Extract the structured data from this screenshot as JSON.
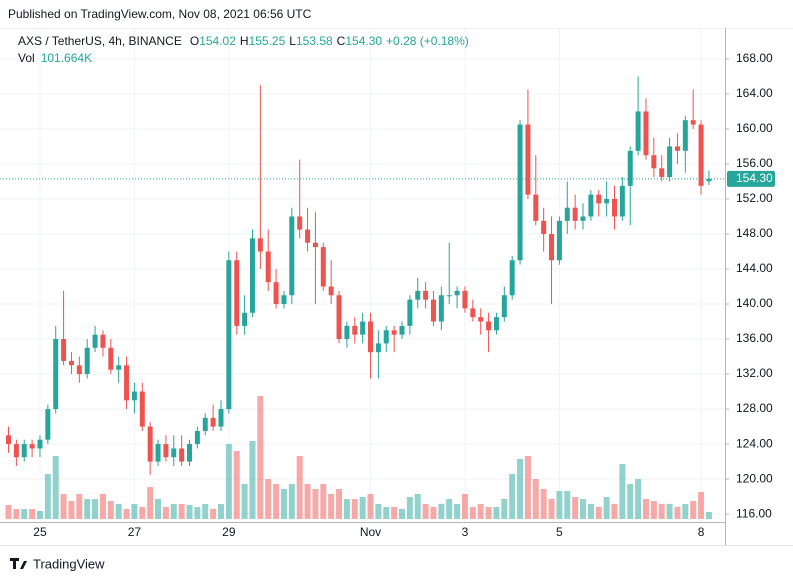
{
  "published": "Published on TradingView.com, Nov 08, 2021 06:56 UTC",
  "footer": "TradingView",
  "chart_data": {
    "type": "candlestick",
    "symbol": "AXS / TetherUS, 4h, BINANCE",
    "legend": [
      {
        "key": "O",
        "value": "154.02"
      },
      {
        "key": "H",
        "value": "155.25"
      },
      {
        "key": "L",
        "value": "153.58"
      },
      {
        "key": "C",
        "value": "154.30"
      }
    ],
    "change": "+0.28 (+0.18%)",
    "volume_key": "Vol",
    "volume_text": "101.664K",
    "up_color": "#26a69a",
    "down_color": "#ef5350",
    "grid": true,
    "last_price": {
      "value": 154.3,
      "label": "154.30"
    },
    "ylim": [
      115.1,
      171.3
    ],
    "yticks": [
      {
        "value": 116,
        "label": "116.00"
      },
      {
        "value": 120,
        "label": "120.00"
      },
      {
        "value": 124,
        "label": "124.00"
      },
      {
        "value": 128,
        "label": "128.00"
      },
      {
        "value": 132,
        "label": "132.00"
      },
      {
        "value": 136,
        "label": "136.00"
      },
      {
        "value": 140,
        "label": "140.00"
      },
      {
        "value": 144,
        "label": "144.00"
      },
      {
        "value": 148,
        "label": "148.00"
      },
      {
        "value": 152,
        "label": "152.00"
      },
      {
        "value": 156,
        "label": "156.00"
      },
      {
        "value": 160,
        "label": "160.00"
      },
      {
        "value": 164,
        "label": "164.00"
      },
      {
        "value": 168,
        "label": "168.00"
      }
    ],
    "categories": [
      null,
      null,
      null,
      null,
      "25",
      null,
      null,
      null,
      null,
      null,
      null,
      null,
      null,
      null,
      null,
      null,
      "27",
      null,
      null,
      null,
      null,
      null,
      null,
      null,
      null,
      null,
      null,
      null,
      "29",
      null,
      null,
      null,
      null,
      null,
      null,
      null,
      null,
      null,
      null,
      null,
      null,
      null,
      null,
      null,
      null,
      null,
      "Nov",
      null,
      null,
      null,
      null,
      null,
      null,
      null,
      null,
      null,
      null,
      null,
      "3",
      null,
      null,
      null,
      null,
      null,
      null,
      null,
      null,
      null,
      null,
      null,
      "5",
      null,
      null,
      null,
      null,
      null,
      null,
      null,
      null,
      null,
      null,
      null,
      null,
      null,
      null,
      null,
      null,
      null,
      "8",
      null
    ],
    "open": [
      125,
      124,
      122.5,
      124,
      123.5,
      124.5,
      128,
      136,
      133.5,
      133,
      132,
      135,
      136.5,
      135,
      132.5,
      133,
      129,
      130,
      126,
      122,
      124,
      122.5,
      123.5,
      122,
      124,
      125.5,
      127,
      126,
      128,
      145,
      137.5,
      139,
      147.5,
      146,
      142.5,
      140,
      141,
      150,
      148.5,
      147,
      146.5,
      142,
      141,
      136,
      137.5,
      136.5,
      138,
      134.5,
      135.5,
      137,
      136.5,
      137.5,
      140.5,
      141.5,
      140.5,
      138,
      141,
      141,
      141.5,
      139.5,
      138.5,
      138,
      137,
      138.5,
      141,
      145,
      160.5,
      152.5,
      149.5,
      148,
      145,
      149.5,
      151,
      149.5,
      150,
      152.5,
      151.5,
      152,
      150,
      153.5,
      157.5,
      162,
      157,
      155.5,
      154.5,
      158,
      157.5,
      161,
      160.5,
      154.02
    ],
    "high": [
      126,
      124.5,
      124.5,
      124.5,
      125,
      128.5,
      137.5,
      141.5,
      134.5,
      134,
      136,
      137.5,
      137,
      136,
      134,
      134,
      131,
      131,
      126.5,
      124.5,
      125,
      125,
      125,
      124.5,
      126,
      127.5,
      128.5,
      129,
      146,
      146,
      141,
      148.5,
      165,
      148.5,
      144,
      141.5,
      151,
      156.5,
      151,
      150.5,
      147,
      145,
      141.5,
      138,
      138.5,
      139,
      139,
      137,
      137.5,
      137.5,
      138,
      141,
      143,
      142.5,
      141.5,
      142,
      147,
      142,
      142,
      140.5,
      139.5,
      139,
      139,
      142,
      145.5,
      161,
      164.5,
      157,
      151,
      150,
      150,
      154,
      152.5,
      151.5,
      153,
      153,
      154,
      153.5,
      154.5,
      158,
      166,
      163.5,
      159,
      157,
      159,
      159.5,
      161.5,
      164.5,
      161,
      155.25
    ],
    "low": [
      123,
      121.5,
      122,
      122.5,
      122.5,
      124,
      127.5,
      133,
      132,
      131,
      131.5,
      134.5,
      134,
      132,
      131,
      128,
      127.5,
      125.5,
      120.5,
      121.5,
      122,
      121.5,
      121.5,
      121.5,
      123.5,
      125,
      125.5,
      125.5,
      127.5,
      136.5,
      136.5,
      138.5,
      144,
      141.5,
      139.5,
      139.5,
      140,
      147.5,
      146,
      140,
      141.5,
      140,
      135.5,
      135,
      135.5,
      135.5,
      131.5,
      131.5,
      134.5,
      134.5,
      136,
      136.5,
      139.5,
      139.5,
      137.5,
      137,
      140,
      139.5,
      139,
      138,
      136.5,
      134.5,
      136.5,
      138,
      140.5,
      144.5,
      152,
      149,
      146,
      140,
      144.5,
      148,
      148.5,
      148.5,
      149.5,
      150,
      150,
      148.5,
      149.5,
      149,
      157,
      156.5,
      154.5,
      154,
      154,
      156,
      155,
      160,
      152.5,
      153.58
    ],
    "close": [
      124,
      122.5,
      124,
      123.5,
      124.5,
      128,
      136,
      133.5,
      133,
      132,
      135,
      136.5,
      135,
      132.5,
      133,
      129,
      130,
      126,
      122,
      124,
      122.5,
      123.5,
      122,
      124,
      125.5,
      127,
      126,
      128,
      145,
      137.5,
      139,
      147.5,
      146,
      142.5,
      140,
      141,
      150,
      148.5,
      147,
      146.5,
      142,
      141,
      136,
      137.5,
      136.5,
      138,
      134.5,
      135.5,
      137,
      136.5,
      137.5,
      140.5,
      141.5,
      140.5,
      138,
      141,
      141,
      141.5,
      139.5,
      138.5,
      138,
      137,
      138.5,
      141,
      145,
      160.5,
      152.5,
      149.5,
      148,
      145,
      149.5,
      151,
      149.5,
      150,
      152.5,
      151.5,
      152,
      150,
      153.5,
      157.5,
      162,
      157,
      155.5,
      154.5,
      158,
      157.5,
      161,
      160.5,
      153.5,
      154.3
    ],
    "volume": [
      203,
      145,
      145,
      145,
      116,
      653,
      914,
      363,
      261,
      363,
      290,
      290,
      363,
      261,
      218,
      145,
      218,
      174,
      464,
      290,
      174,
      218,
      218,
      203,
      174,
      218,
      145,
      218,
      1088,
      986,
      508,
      1131,
      1784,
      580,
      508,
      435,
      508,
      914,
      508,
      435,
      508,
      363,
      435,
      290,
      290,
      319,
      363,
      218,
      174,
      174,
      145,
      319,
      363,
      218,
      174,
      218,
      290,
      218,
      363,
      174,
      218,
      174,
      174,
      290,
      653,
      870,
      914,
      580,
      435,
      290,
      406,
      406,
      319,
      290,
      218,
      174,
      319,
      218,
      798,
      508,
      580,
      290,
      261,
      218,
      218,
      174,
      218,
      261,
      392,
      101.664
    ]
  }
}
